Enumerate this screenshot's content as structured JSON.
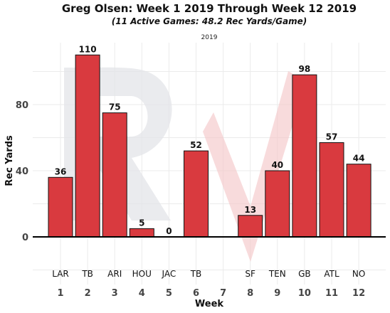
{
  "chart_data": {
    "type": "bar",
    "title": "Greg Olsen: Week 1 2019 Through Week 12 2019",
    "subtitle": "(11 Active Games: 48.2 Rec Yards/Game)",
    "facet_label": "2019",
    "xlabel": "Week",
    "ylabel": "Rec Yards",
    "categories": [
      "1",
      "2",
      "3",
      "4",
      "5",
      "6",
      "7",
      "8",
      "9",
      "10",
      "11",
      "12"
    ],
    "opponents": [
      "LAR",
      "TB",
      "ARI",
      "HOU",
      "JAC",
      "TB",
      "",
      "SF",
      "TEN",
      "GB",
      "ATL",
      "NO"
    ],
    "values": [
      36,
      110,
      75,
      5,
      0,
      52,
      null,
      13,
      40,
      98,
      57,
      44
    ],
    "yticks": [
      0,
      40,
      80
    ],
    "ylim": [
      -29,
      117
    ],
    "grid": true,
    "bar_color": "#d93a3f",
    "watermark_color": "#e3e4e8",
    "watermark_accent": "#f4c7c9"
  }
}
